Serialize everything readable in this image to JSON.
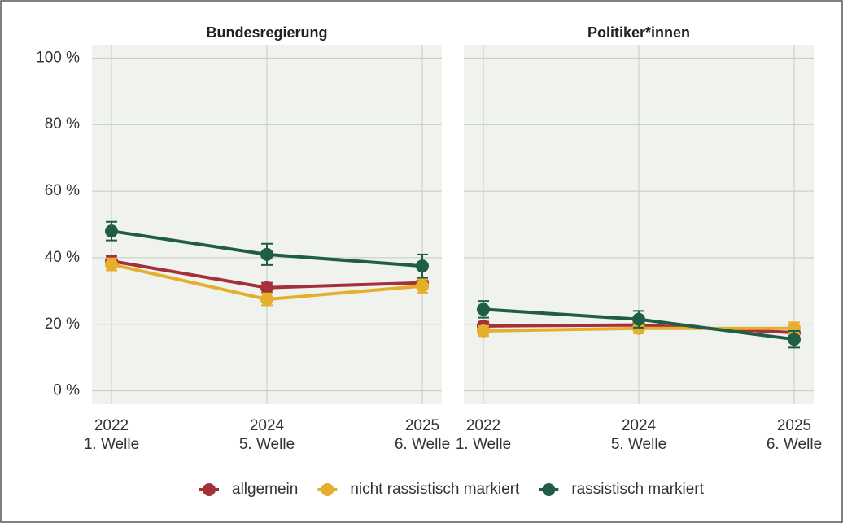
{
  "chart_data": [
    {
      "type": "line",
      "title": "Bundesregierung",
      "categories": [
        [
          "2022",
          "1. Welle"
        ],
        [
          "2024",
          "5. Welle"
        ],
        [
          "2025",
          "6. Welle"
        ]
      ],
      "ylim": [
        -4,
        104
      ],
      "yticks": [
        {
          "value": 0,
          "label": "0 %"
        },
        {
          "value": 20,
          "label": "20 %"
        },
        {
          "value": 40,
          "label": "40 %"
        },
        {
          "value": 60,
          "label": "60 %"
        },
        {
          "value": 80,
          "label": "80 %"
        },
        {
          "value": 100,
          "label": "100 %"
        }
      ],
      "grid": true,
      "series": [
        {
          "name": "allgemein",
          "color": "#a4303a",
          "values": [
            39,
            31,
            32.5
          ],
          "errors": [
            1.5,
            1.5,
            1.5
          ]
        },
        {
          "name": "nicht rassistisch markiert",
          "color": "#e6ae2d",
          "values": [
            38,
            27.5,
            31.5
          ],
          "errors": [
            1.8,
            1.8,
            2
          ]
        },
        {
          "name": "rassistisch markiert",
          "color": "#1f5d47",
          "values": [
            48,
            41,
            37.5
          ],
          "errors": [
            2.8,
            3.2,
            3.5
          ]
        }
      ]
    },
    {
      "type": "line",
      "title": "Politiker*innen",
      "categories": [
        [
          "2022",
          "1. Welle"
        ],
        [
          "2024",
          "5. Welle"
        ],
        [
          "2025",
          "6. Welle"
        ]
      ],
      "ylim": [
        -4,
        104
      ],
      "yticks": [
        0,
        20,
        40,
        60,
        80,
        100
      ],
      "grid": true,
      "series": [
        {
          "color": "#a4303a",
          "values": [
            19.5,
            19.8,
            17.5
          ],
          "errors": [
            1.3,
            1.3,
            1.3
          ]
        },
        {
          "color": "#e6ae2d",
          "values": [
            18,
            18.8,
            18.8
          ],
          "errors": [
            1.5,
            1.5,
            1.8
          ]
        },
        {
          "color": "#1f5d47",
          "values": [
            24.5,
            21.5,
            15.5
          ],
          "errors": [
            2.5,
            2.5,
            2.5
          ]
        }
      ]
    }
  ]
}
